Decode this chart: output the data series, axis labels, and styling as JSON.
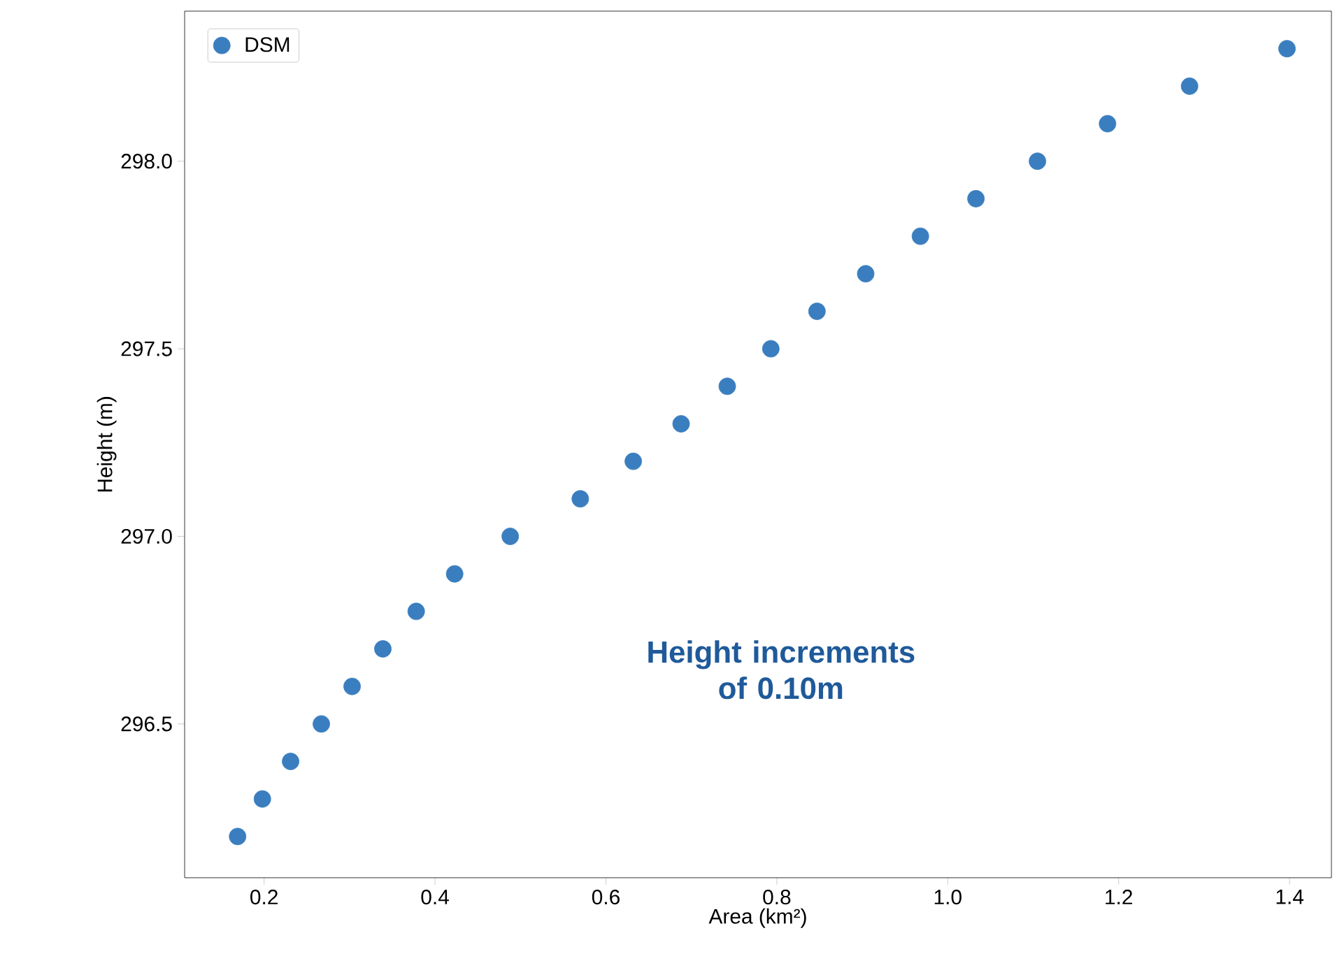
{
  "chart_data": {
    "type": "scatter",
    "xlabel": "Area (km²)",
    "ylabel": "Height (m)",
    "annotations": [
      "Height increments of 0.10m"
    ],
    "xlim": [
      0.107,
      1.449
    ],
    "ylim": [
      296.09,
      298.4
    ],
    "xticks": [
      0.2,
      0.4,
      0.6,
      0.8,
      {
        "value": 1.0,
        "label": "1.0"
      },
      1.2,
      1.4
    ],
    "yticks": [
      296.5,
      {
        "value": 297.0,
        "label": "297.0"
      },
      297.5,
      {
        "value": 298.0,
        "label": "298.0"
      }
    ],
    "legend": "top left",
    "marker": "circle",
    "grid": false,
    "series": [
      {
        "name": "DSM",
        "color": "#3a7ebf",
        "x": [
          0.169,
          0.198,
          0.231,
          0.267,
          0.303,
          0.339,
          0.378,
          0.423,
          0.488,
          0.57,
          0.632,
          0.688,
          0.742,
          0.793,
          0.847,
          0.904,
          0.968,
          1.033,
          1.105,
          1.187,
          1.283,
          1.397
        ],
        "values": [
          296.2,
          296.3,
          296.4,
          296.5,
          296.6,
          296.7,
          296.8,
          296.9,
          297.0,
          297.1,
          297.2,
          297.3,
          297.4,
          297.5,
          297.6,
          297.7,
          297.8,
          297.9,
          298.0,
          298.1,
          298.2,
          298.3
        ]
      }
    ]
  }
}
